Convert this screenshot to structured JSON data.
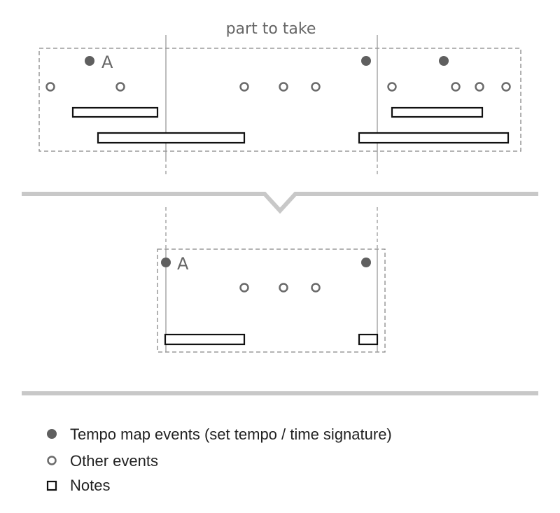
{
  "title": "part to take",
  "marker_label": "A",
  "colors": {
    "tempo_event": "#5f5f5f",
    "other_event": "#6a6a6a",
    "note": "#111111",
    "guide": "#999999",
    "separator": "#c8c8c8"
  },
  "legend": [
    {
      "symbol": "filled-circle",
      "label": "Tempo map events (set tempo / time signature)"
    },
    {
      "symbol": "hollow-circle",
      "label": "Other events"
    },
    {
      "symbol": "hollow-square",
      "label": "Notes"
    }
  ]
}
